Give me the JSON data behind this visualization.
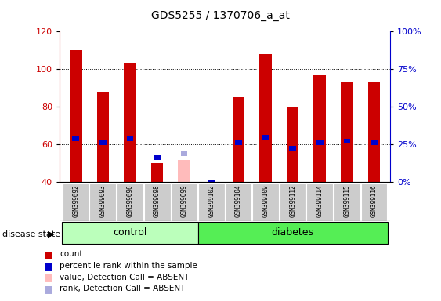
{
  "title": "GDS5255 / 1370706_a_at",
  "samples": [
    "GSM399092",
    "GSM399093",
    "GSM399096",
    "GSM399098",
    "GSM399099",
    "GSM399102",
    "GSM399104",
    "GSM399109",
    "GSM399112",
    "GSM399114",
    "GSM399115",
    "GSM399116"
  ],
  "red_bars": [
    110,
    88,
    103,
    50,
    40,
    40,
    85,
    108,
    80,
    97,
    93,
    93
  ],
  "blue_bars": [
    63,
    61,
    63,
    53,
    40,
    40,
    61,
    64,
    58,
    61,
    62,
    61
  ],
  "absent_red": [
    null,
    null,
    null,
    null,
    52,
    null,
    null,
    null,
    null,
    null,
    null,
    null
  ],
  "absent_blue": [
    null,
    null,
    null,
    null,
    55,
    null,
    null,
    null,
    null,
    null,
    null,
    null
  ],
  "absent_sample_indices": [
    4
  ],
  "ylim_left": [
    40,
    120
  ],
  "ylim_right": [
    0,
    100
  ],
  "yticks_left": [
    40,
    60,
    80,
    100,
    120
  ],
  "ytick_labels_right": [
    "0%",
    "25%",
    "50%",
    "75%",
    "100%"
  ],
  "ctrl_count": 5,
  "group_label_control": "control",
  "group_label_diabetes": "diabetes",
  "disease_state_label": "disease state",
  "legend_items": [
    {
      "label": "count",
      "color": "#cc0000"
    },
    {
      "label": "percentile rank within the sample",
      "color": "#0000cc"
    },
    {
      "label": "value, Detection Call = ABSENT",
      "color": "#ffbbbb"
    },
    {
      "label": "rank, Detection Call = ABSENT",
      "color": "#aaaadd"
    }
  ],
  "red_color": "#cc0000",
  "blue_color": "#0000cc",
  "absent_red_color": "#ffbbbb",
  "absent_blue_color": "#aaaadd",
  "group_bg_control": "#bbffbb",
  "group_bg_diabetes": "#55ee55",
  "sample_bg": "#cccccc",
  "left_axis_color": "#cc0000",
  "right_axis_color": "#0000cc"
}
